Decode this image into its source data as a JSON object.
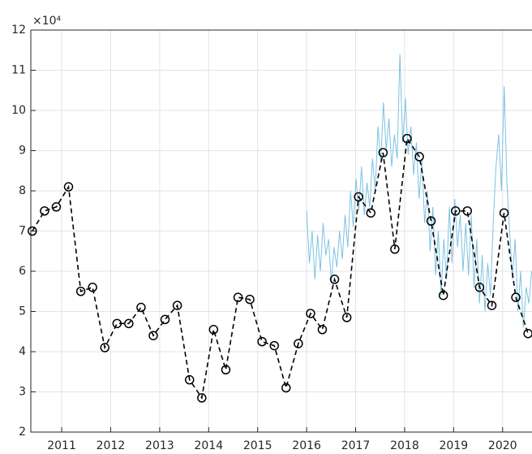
{
  "chart_data": {
    "type": "line",
    "y_exponent_label": "×10⁴",
    "xlim": [
      2010.37,
      2020.6
    ],
    "xticks": [
      2011,
      2012,
      2013,
      2014,
      2015,
      2016,
      2017,
      2018,
      2019,
      2020
    ],
    "ylim": [
      2,
      12
    ],
    "yticks": [
      2,
      3,
      4,
      5,
      6,
      7,
      8,
      9,
      10,
      11,
      12
    ],
    "grid": true,
    "series": [
      {
        "color": "#7dc2e3",
        "linestyle": "solid",
        "marker": null,
        "x": [
          2016,
          2016.056,
          2016.112,
          2016.168,
          2016.224,
          2016.28,
          2016.336,
          2016.392,
          2016.448,
          2016.504,
          2016.56,
          2016.616,
          2016.672,
          2016.728,
          2016.784,
          2016.84,
          2016.896,
          2016.952,
          2017.008,
          2017.064,
          2017.12,
          2017.176,
          2017.232,
          2017.288,
          2017.344,
          2017.4,
          2017.456,
          2017.512,
          2017.568,
          2017.624,
          2017.68,
          2017.736,
          2017.792,
          2017.848,
          2017.904,
          2017.96,
          2018.016,
          2018.072,
          2018.128,
          2018.184,
          2018.24,
          2018.296,
          2018.352,
          2018.408,
          2018.464,
          2018.52,
          2018.576,
          2018.632,
          2018.688,
          2018.744,
          2018.8,
          2018.856,
          2018.912,
          2018.968,
          2019.024,
          2019.08,
          2019.136,
          2019.192,
          2019.248,
          2019.304,
          2019.36,
          2019.416,
          2019.472,
          2019.528,
          2019.584,
          2019.64,
          2019.696,
          2019.752,
          2019.808,
          2019.864,
          2019.92,
          2019.976,
          2020.032,
          2020.088,
          2020.144,
          2020.2,
          2020.256,
          2020.312,
          2020.368,
          2020.424,
          2020.48,
          2020.536,
          2020.592
        ],
        "values": [
          7.5,
          6.2,
          7.0,
          5.8,
          6.9,
          6.0,
          7.2,
          6.4,
          6.8,
          5.7,
          6.6,
          6.1,
          7.0,
          6.3,
          7.4,
          6.6,
          8.0,
          7.1,
          8.3,
          7.5,
          8.6,
          7.4,
          8.2,
          7.6,
          8.8,
          8.0,
          9.6,
          8.7,
          10.2,
          9.0,
          9.8,
          8.6,
          9.4,
          8.8,
          11.4,
          9.2,
          10.3,
          8.9,
          9.6,
          8.4,
          9.2,
          7.8,
          8.8,
          7.2,
          8.0,
          6.5,
          7.6,
          5.9,
          7.0,
          5.4,
          6.8,
          5.8,
          7.6,
          6.2,
          7.8,
          6.6,
          7.4,
          6.0,
          7.2,
          5.9,
          7.4,
          5.6,
          6.8,
          5.2,
          6.4,
          5.0,
          6.2,
          5.4,
          7.2,
          8.6,
          9.4,
          8.0,
          10.6,
          8.2,
          7.0,
          5.8,
          6.8,
          5.0,
          6.0,
          4.6,
          5.6,
          5.2,
          6.0
        ]
      },
      {
        "color": "#000000",
        "linestyle": "dashed",
        "marker": "o",
        "x": [
          2010.4,
          2010.65,
          2010.89,
          2011.14,
          2011.39,
          2011.63,
          2011.88,
          2012.13,
          2012.37,
          2012.62,
          2012.87,
          2013.11,
          2013.36,
          2013.61,
          2013.86,
          2014.1,
          2014.35,
          2014.6,
          2014.84,
          2015.09,
          2015.34,
          2015.58,
          2015.83,
          2016.08,
          2016.32,
          2016.57,
          2016.82,
          2017.06,
          2017.31,
          2017.56,
          2017.8,
          2018.05,
          2018.3,
          2018.54,
          2018.79,
          2019.04,
          2019.28,
          2019.53,
          2019.78,
          2020.03,
          2020.27,
          2020.52
        ],
        "values": [
          7.0,
          7.5,
          7.6,
          8.1,
          5.5,
          5.6,
          4.1,
          4.7,
          4.7,
          5.1,
          4.4,
          4.8,
          5.15,
          3.3,
          2.85,
          4.55,
          3.55,
          5.35,
          5.3,
          4.25,
          4.15,
          3.1,
          4.2,
          4.95,
          4.55,
          5.8,
          4.85,
          7.85,
          7.45,
          8.95,
          6.55,
          9.3,
          8.85,
          7.25,
          5.4,
          7.5,
          7.5,
          5.6,
          5.15,
          7.45,
          5.35,
          4.45
        ]
      }
    ]
  }
}
